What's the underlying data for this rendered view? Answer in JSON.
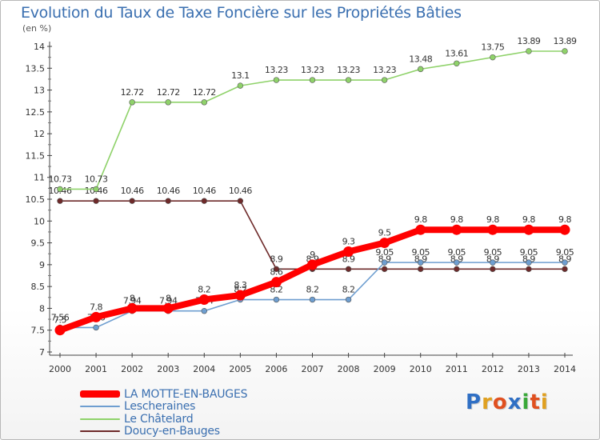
{
  "header": {
    "title": "Evolution du Taux de Taxe Foncière sur les Propriétés Bâties",
    "unit": "(en %)"
  },
  "logo": {
    "text": "Proxiti",
    "letters": [
      "P",
      "r",
      "o",
      "x",
      "i",
      "t",
      "i"
    ],
    "colors": [
      "#2f6fc4",
      "#e0a020",
      "#e05020",
      "#2f6fc4",
      "#38a838",
      "#e05020",
      "#e0a020"
    ]
  },
  "chart_data": {
    "type": "line",
    "title": "Evolution du Taux de Taxe Foncière sur les Propriétés Bâties",
    "ylabel": "(en %)",
    "xlabel": "",
    "x": [
      "2000",
      "2001",
      "2002",
      "2003",
      "2004",
      "2005",
      "2006",
      "2007",
      "2008",
      "2009",
      "2010",
      "2011",
      "2012",
      "2013",
      "2014"
    ],
    "ylim": [
      7,
      14
    ],
    "yticks": [
      "7",
      "7.5",
      "8",
      "8.5",
      "9",
      "9.5",
      "10",
      "10.5",
      "11",
      "11.5",
      "12",
      "12.5",
      "13",
      "13.5",
      "14"
    ],
    "grid": false,
    "legend": "bottom-left",
    "series": [
      {
        "name": "Doucy-en-Bauges",
        "color": "#6e2a2a",
        "values": [
          10.46,
          10.46,
          10.46,
          10.46,
          10.46,
          10.46,
          8.9,
          8.9,
          8.9,
          8.9,
          8.9,
          8.9,
          8.9,
          8.9,
          8.9
        ],
        "labels": [
          "10.46",
          "10.46",
          "10.46",
          "10.46",
          "10.46",
          "10.46",
          "8.9",
          "8.9",
          "8.9",
          "8.9",
          "8.9",
          "8.9",
          "8.9",
          "8.9",
          "8.9"
        ]
      },
      {
        "name": "Le Châtelard",
        "color": "#8fd26a",
        "values": [
          10.73,
          10.73,
          12.72,
          12.72,
          12.72,
          13.1,
          13.23,
          13.23,
          13.23,
          13.23,
          13.48,
          13.61,
          13.75,
          13.89,
          13.89
        ],
        "labels": [
          "10.73",
          "10.73",
          "12.72",
          "12.72",
          "12.72",
          "13.1",
          "13.23",
          "13.23",
          "13.23",
          "13.23",
          "13.48",
          "13.61",
          "13.75",
          "13.89",
          "13.89"
        ]
      },
      {
        "name": "Lescheraines",
        "color": "#6e9ed0",
        "values": [
          7.56,
          7.56,
          7.94,
          7.94,
          7.94,
          8.2,
          8.2,
          8.2,
          8.2,
          9.05,
          9.05,
          9.05,
          9.05,
          9.05,
          9.05
        ],
        "labels": [
          "7.56",
          "7.56",
          "7.94",
          "7.94",
          "7.94",
          "8.2",
          "8.2",
          "8.2",
          "8.2",
          "9.05",
          "9.05",
          "9.05",
          "9.05",
          "9.05",
          "9.05"
        ]
      },
      {
        "name": "LA MOTTE-EN-BAUGES",
        "color": "#ff0000",
        "values": [
          7.5,
          7.8,
          8,
          8,
          8.2,
          8.3,
          8.6,
          9,
          9.3,
          9.5,
          9.8,
          9.8,
          9.8,
          9.8,
          9.8
        ],
        "labels": [
          "7.5",
          "7.8",
          "8",
          "8",
          "8.2",
          "8.3",
          "8.6",
          "9",
          "9.3",
          "9.5",
          "9.8",
          "9.8",
          "9.8",
          "9.8",
          "9.8"
        ]
      }
    ],
    "legend_order": [
      "LA MOTTE-EN-BAUGES",
      "Lescheraines",
      "Le Châtelard",
      "Doucy-en-Bauges"
    ]
  }
}
